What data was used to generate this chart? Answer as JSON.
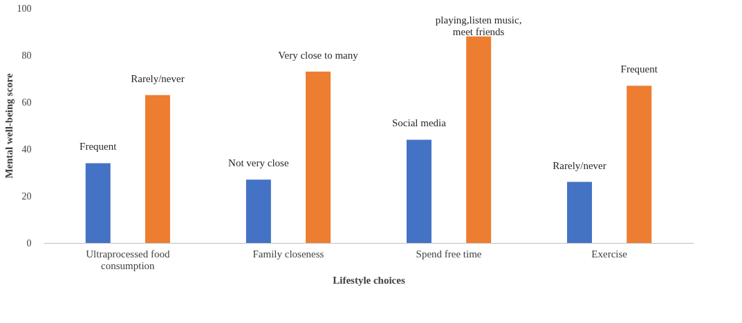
{
  "chart_data": {
    "type": "bar",
    "xlabel": "Lifestyle choices",
    "ylabel": "Mental well-being score",
    "categories": [
      "Ultraprocessed food consumption",
      "Family closeness",
      "Spend free time",
      "Exercise"
    ],
    "series": [
      {
        "color": "#4472c4",
        "values": [
          34,
          27,
          44,
          26
        ]
      },
      {
        "color": "#ed7d31",
        "values": [
          63,
          73,
          88,
          67
        ]
      }
    ],
    "ylim": [
      0,
      100
    ],
    "yticks": [
      0,
      20,
      40,
      60,
      80,
      100
    ],
    "grid": false,
    "legend": false,
    "annotations": [
      "Frequent",
      "Rarely/never",
      "Not very close",
      "Very close to many",
      "Social media",
      "playing,listen music, meet friends",
      "Rarely/never",
      "Frequent"
    ]
  }
}
